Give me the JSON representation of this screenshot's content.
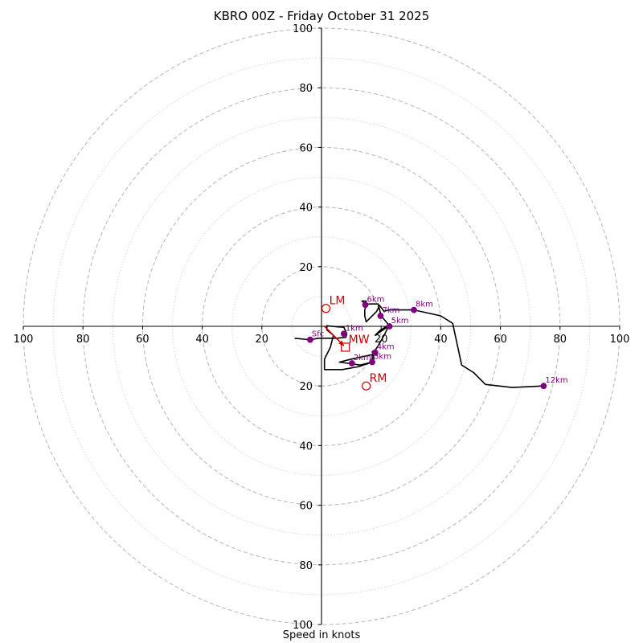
{
  "chart_data": {
    "type": "hodograph",
    "title": "KBRO 00Z - Friday October 31 2025",
    "xlabel": "Speed in knots",
    "units": "knots",
    "rings": {
      "major": [
        20,
        40,
        60,
        80,
        100
      ],
      "minor": [
        10,
        30,
        50,
        70,
        90
      ],
      "max": 100
    },
    "tick_labels": {
      "x_left": [
        "100",
        "80",
        "60",
        "40",
        "20"
      ],
      "x_right": [
        "20",
        "40",
        "60",
        "80",
        "100"
      ],
      "y_up": [
        "20",
        "40",
        "60",
        "80",
        "100"
      ],
      "y_down": [
        "20",
        "40",
        "60",
        "80",
        "100"
      ]
    },
    "trace": [
      [
        -9,
        -4
      ],
      [
        -4,
        -4.5
      ],
      [
        -1,
        -4
      ],
      [
        2,
        -4
      ],
      [
        5,
        -4
      ],
      [
        8.2,
        -3.7
      ],
      [
        8.5,
        -2.5
      ],
      [
        7.5,
        -0.3
      ],
      [
        5.5,
        -0.2
      ],
      [
        1.8,
        0.2
      ],
      [
        1.8,
        -1.2
      ],
      [
        4,
        -3
      ],
      [
        3,
        -7
      ],
      [
        1,
        -11
      ],
      [
        1,
        -14.5
      ],
      [
        7,
        -14.5
      ],
      [
        12.5,
        -13.5
      ],
      [
        17,
        -12
      ],
      [
        13,
        -13
      ],
      [
        6,
        -12
      ],
      [
        10,
        -11
      ],
      [
        17,
        -9.5
      ],
      [
        17,
        -12
      ],
      [
        17.5,
        -12
      ],
      [
        17.5,
        -10
      ],
      [
        17,
        -8.5
      ],
      [
        18,
        -8
      ],
      [
        19,
        -6.5
      ],
      [
        21,
        -3
      ],
      [
        22.5,
        0
      ],
      [
        19,
        -2.3
      ],
      [
        18,
        -3
      ],
      [
        19.5,
        -1.5
      ],
      [
        21,
        -0.5
      ],
      [
        22.5,
        0.5
      ],
      [
        20,
        3.5
      ],
      [
        19,
        7.5
      ],
      [
        15,
        7.5
      ],
      [
        13.5,
        8.5
      ],
      [
        15,
        8.5
      ],
      [
        15,
        7
      ],
      [
        14.5,
        5.5
      ],
      [
        14.5,
        3.5
      ],
      [
        15,
        1.5
      ],
      [
        16.5,
        3
      ],
      [
        18.5,
        5
      ],
      [
        19.5,
        7
      ],
      [
        21,
        5
      ],
      [
        22.5,
        5.5
      ],
      [
        31,
        5.5
      ],
      [
        40,
        3.5
      ],
      [
        44,
        1
      ],
      [
        47,
        -13
      ],
      [
        51,
        -15.5
      ],
      [
        55,
        -19.5
      ],
      [
        64,
        -20.5
      ],
      [
        74.5,
        -20
      ]
    ],
    "height_points": [
      {
        "label": "Sfc",
        "u": -3.8,
        "v": -4.5
      },
      {
        "label": "1km",
        "u": 7.5,
        "v": -2.5
      },
      {
        "label": "2km",
        "u": 10.2,
        "v": -12.4
      },
      {
        "label": "3km",
        "u": 17,
        "v": -12
      },
      {
        "label": "4km",
        "u": 18,
        "v": -8.8
      },
      {
        "label": "5km",
        "u": 22.8,
        "v": 0
      },
      {
        "label": "6km",
        "u": 14.7,
        "v": 7.2
      },
      {
        "label": "7km",
        "u": 19.8,
        "v": 3.5
      },
      {
        "label": "8km",
        "u": 31,
        "v": 5.5
      },
      {
        "label": "12km",
        "u": 74.5,
        "v": -20
      }
    ],
    "storm_motion": [
      {
        "label": "LM",
        "u": 1.5,
        "v": 6,
        "marker": "circle"
      },
      {
        "label": "RM",
        "u": 15,
        "v": -20,
        "marker": "circle"
      },
      {
        "label": "MW",
        "u": 8,
        "v": -7,
        "marker": "square"
      }
    ],
    "shear_arrow": {
      "from": [
        1,
        0
      ],
      "to": [
        7.5,
        -6.5
      ]
    },
    "colors": {
      "trace": "#000000",
      "points": "#800080",
      "storm": "#cc0000",
      "grid": "#bbbbbb",
      "axis": "#000000"
    }
  }
}
